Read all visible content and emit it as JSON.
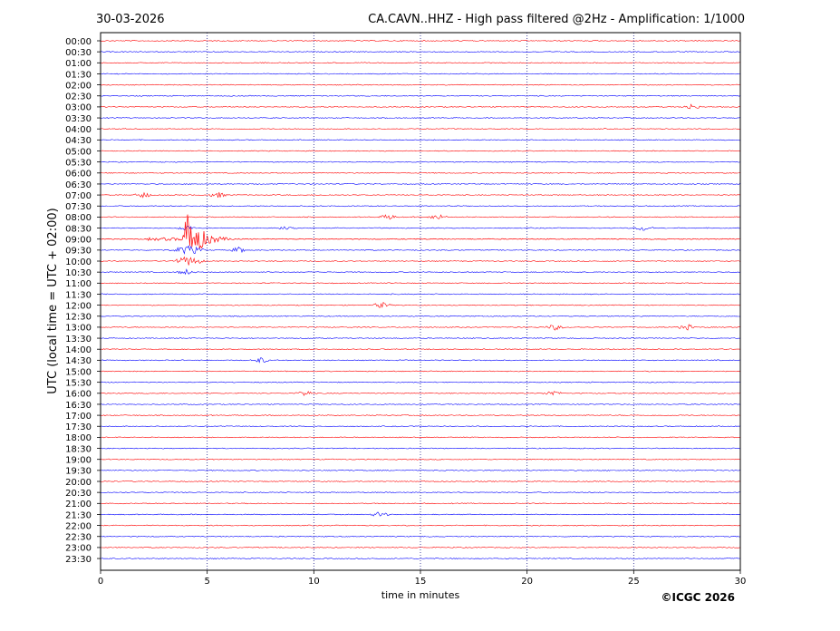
{
  "header": {
    "date": "30-03-2026",
    "title": "CA.CAVN..HHZ - High pass filtered @2Hz - Amplification: 1/1000"
  },
  "copyright": "©ICGC 2026",
  "chart_data": {
    "type": "line",
    "title": "CA.CAVN..HHZ - High pass filtered @2Hz - Amplification: 1/1000",
    "xlabel": "time in minutes",
    "ylabel": "UTC (local time = UTC + 02:00)",
    "xlim": [
      0,
      30
    ],
    "xticks": [
      "0",
      "5",
      "10",
      "15",
      "20",
      "25",
      "30"
    ],
    "vertical_gridlines_at": [
      5,
      10,
      15,
      20,
      25
    ],
    "grid": "vertical dotted",
    "colors": {
      "even_rows": "#ff0000",
      "odd_rows": "#0000ff"
    },
    "rows": [
      "00:00",
      "00:30",
      "01:00",
      "01:30",
      "02:00",
      "02:30",
      "03:00",
      "03:30",
      "04:00",
      "04:30",
      "05:00",
      "05:30",
      "06:00",
      "06:30",
      "07:00",
      "07:30",
      "08:00",
      "08:30",
      "09:00",
      "09:30",
      "10:00",
      "10:30",
      "11:00",
      "11:30",
      "12:00",
      "12:30",
      "13:00",
      "13:30",
      "14:00",
      "14:30",
      "15:00",
      "15:30",
      "16:00",
      "16:30",
      "17:00",
      "17:30",
      "18:00",
      "18:30",
      "19:00",
      "19:30",
      "20:00",
      "20:30",
      "21:00",
      "21:30",
      "22:00",
      "22:30",
      "23:00",
      "23:30"
    ],
    "events": [
      {
        "row": "09:00",
        "minute": 4.0,
        "amplitude": "large",
        "note": "earthquake signal"
      },
      {
        "row": "08:30",
        "minute": 4.0,
        "amplitude": "small"
      },
      {
        "row": "09:30",
        "minute": 4.1,
        "amplitude": "medium"
      },
      {
        "row": "10:00",
        "minute": 4.1,
        "amplitude": "medium"
      },
      {
        "row": "10:30",
        "minute": 4.0,
        "amplitude": "small"
      },
      {
        "row": "07:00",
        "minute": 2.0,
        "amplitude": "small"
      },
      {
        "row": "07:00",
        "minute": 5.5,
        "amplitude": "small"
      },
      {
        "row": "08:00",
        "minute": 15.8,
        "amplitude": "small"
      },
      {
        "row": "08:00",
        "minute": 13.5,
        "amplitude": "small"
      },
      {
        "row": "08:30",
        "minute": 8.8,
        "amplitude": "small"
      },
      {
        "row": "08:30",
        "minute": 25.5,
        "amplitude": "small"
      },
      {
        "row": "09:30",
        "minute": 6.5,
        "amplitude": "small"
      },
      {
        "row": "03:00",
        "minute": 27.7,
        "amplitude": "small"
      },
      {
        "row": "12:00",
        "minute": 13.2,
        "amplitude": "small"
      },
      {
        "row": "13:00",
        "minute": 21.3,
        "amplitude": "small"
      },
      {
        "row": "13:00",
        "minute": 27.5,
        "amplitude": "small"
      },
      {
        "row": "14:30",
        "minute": 7.5,
        "amplitude": "small"
      },
      {
        "row": "16:00",
        "minute": 9.6,
        "amplitude": "small"
      },
      {
        "row": "16:00",
        "minute": 21.2,
        "amplitude": "small"
      },
      {
        "row": "21:30",
        "minute": 13.1,
        "amplitude": "small"
      }
    ]
  }
}
